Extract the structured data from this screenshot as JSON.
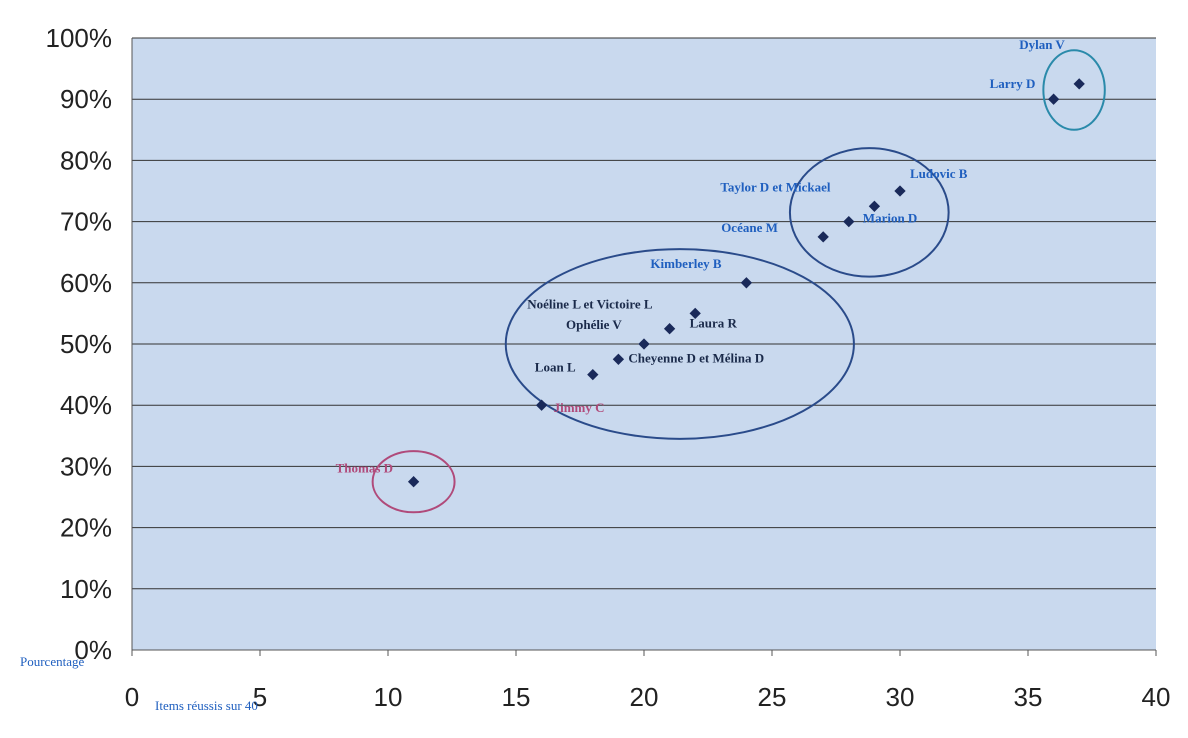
{
  "chart_data": {
    "type": "scatter",
    "xlabel": "Items réussis sur 40",
    "ylabel": "Pourcentage",
    "xlim": [
      0,
      40
    ],
    "ylim": [
      0,
      1
    ],
    "x_ticks": [
      "0",
      "5",
      "10",
      "15",
      "20",
      "25",
      "30",
      "35",
      "40"
    ],
    "y_ticks": [
      "0%",
      "10%",
      "20%",
      "30%",
      "40%",
      "50%",
      "60%",
      "70%",
      "80%",
      "90%",
      "100%"
    ],
    "grid": true,
    "legend": "none",
    "points": [
      {
        "x": 11,
        "y": 0.275,
        "label": "Thomas D",
        "color": "#b04a7a"
      },
      {
        "x": 16,
        "y": 0.4,
        "label": "Jimmy C",
        "color": "#b04a7a"
      },
      {
        "x": 18,
        "y": 0.45,
        "label": "Loan L",
        "color": "#1a2a4a"
      },
      {
        "x": 19,
        "y": 0.475,
        "label": "Cheyenne D et Mélina D",
        "color": "#1a2a4a"
      },
      {
        "x": 20,
        "y": 0.5,
        "label": "Ophélie V",
        "color": "#1a2a4a"
      },
      {
        "x": 21,
        "y": 0.525,
        "label": "Laura R",
        "color": "#1a2a4a"
      },
      {
        "x": 22,
        "y": 0.55,
        "label": "Noéline L et Victoire L",
        "color": "#1a2a4a"
      },
      {
        "x": 24,
        "y": 0.6,
        "label": "Kimberley B",
        "color": "#1f5fbf"
      },
      {
        "x": 27,
        "y": 0.675,
        "label": "Océane M",
        "color": "#1f5fbf"
      },
      {
        "x": 28,
        "y": 0.7,
        "label": "Marion D",
        "color": "#1f5fbf"
      },
      {
        "x": 29,
        "y": 0.725,
        "label": "Taylor D et Mickael",
        "color": "#1f5fbf"
      },
      {
        "x": 30,
        "y": 0.75,
        "label": "Ludovic B",
        "color": "#1f5fbf"
      },
      {
        "x": 36,
        "y": 0.9,
        "label": "Larry D",
        "color": "#1f5fbf"
      },
      {
        "x": 37,
        "y": 0.925,
        "label": "Dylan V",
        "color": "#1f5fbf"
      }
    ],
    "groups": [
      {
        "cx": 11,
        "cy": 0.275,
        "rx": 1.6,
        "ry": 0.05,
        "color": "#b04a7a"
      },
      {
        "cx": 21.4,
        "cy": 0.5,
        "rx": 6.8,
        "ry": 0.155,
        "color": "#2a4b8a"
      },
      {
        "cx": 28.8,
        "cy": 0.715,
        "rx": 3.1,
        "ry": 0.105,
        "color": "#2a4b8a"
      },
      {
        "cx": 36.8,
        "cy": 0.915,
        "rx": 1.2,
        "ry": 0.065,
        "color": "#2a8aaa"
      }
    ]
  },
  "colors": {
    "plot_bg": "#c9d9ee",
    "grid": "#333333",
    "marker": "#1a2a5a"
  }
}
